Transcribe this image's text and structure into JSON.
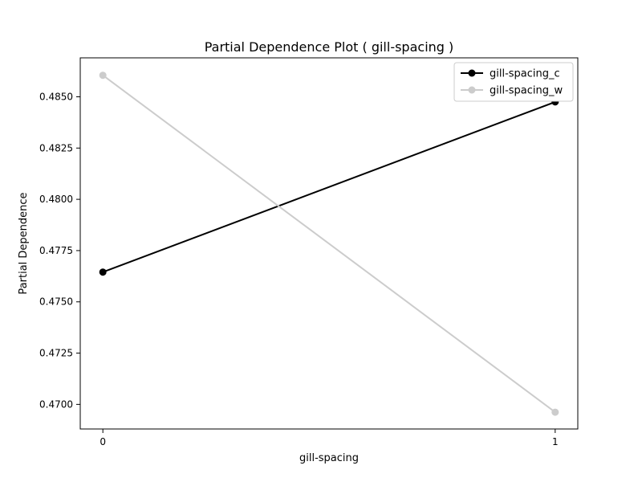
{
  "chart_data": {
    "type": "line",
    "title": "Partial Dependence Plot ( gill-spacing )",
    "xlabel": "gill-spacing",
    "ylabel": "Partial Dependence",
    "x": [
      0,
      1
    ],
    "x_ticks": [
      "0",
      "1"
    ],
    "xlim": [
      -0.05,
      1.05
    ],
    "ylim": [
      0.4688,
      0.4869
    ],
    "y_ticks": [
      "0.4700",
      "0.4725",
      "0.4750",
      "0.4775",
      "0.4800",
      "0.4825",
      "0.4850"
    ],
    "grid": false,
    "legend_position": "top-right",
    "series": [
      {
        "name": "gill-spacing_c",
        "values": [
          0.47645,
          0.48475
        ],
        "color": "#000000"
      },
      {
        "name": "gill-spacing_w",
        "values": [
          0.48605,
          0.46962
        ],
        "color": "#cccccc"
      }
    ]
  }
}
